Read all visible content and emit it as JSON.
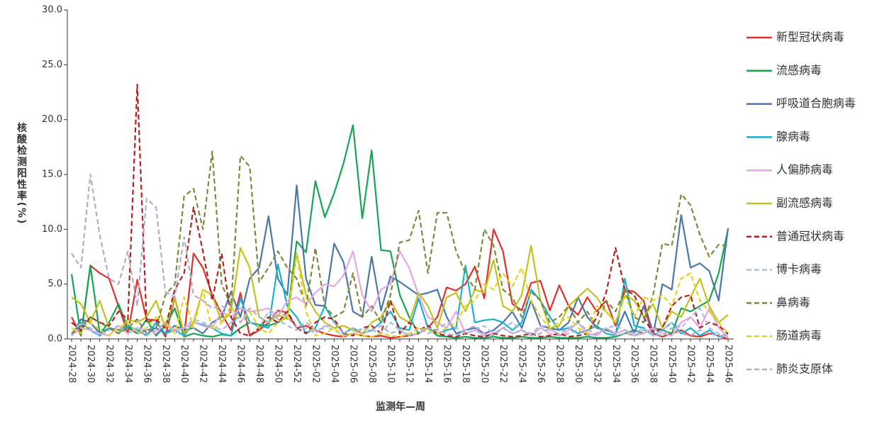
{
  "chart_data": {
    "type": "line",
    "y_label": "核酸检测阳性率(%)",
    "x_label": "监测年—周",
    "categories": [
      "2024-28",
      null,
      "2024-30",
      null,
      "2024-32",
      null,
      "2024-34",
      null,
      "2024-36",
      null,
      "2024-38",
      null,
      "2024-40",
      null,
      "2024-42",
      null,
      "2024-44",
      null,
      "2024-46",
      null,
      "2024-48",
      null,
      "2024-50",
      null,
      "2024-52",
      null,
      "2025-02",
      null,
      "2025-04",
      null,
      "2025-06",
      null,
      "2025-08",
      null,
      "2025-10",
      null,
      "2025-12",
      null,
      "2025-14",
      null,
      "2025-16",
      null,
      "2025-18",
      null,
      "2025-20",
      null,
      "2025-22",
      null,
      "2025-24",
      null,
      "2025-26",
      null,
      "2025-28",
      null,
      "2025-30",
      null,
      "2025-32",
      null,
      "2025-34",
      null,
      "2025-36",
      null,
      "2025-38",
      null,
      "2025-40",
      null,
      "2025-42",
      null,
      "2025-44",
      null,
      "2025-46"
    ],
    "ylim": [
      0,
      30
    ],
    "yticks": [
      {
        "value": 0,
        "label": "0.0"
      },
      {
        "value": 5,
        "label": "5.0"
      },
      {
        "value": 10,
        "label": "10.0"
      },
      {
        "value": 15,
        "label": "15.0"
      },
      {
        "value": 20,
        "label": "20.0"
      },
      {
        "value": 25,
        "label": "25.0"
      },
      {
        "value": 30,
        "label": "30.0"
      }
    ],
    "grid": false,
    "legend": "right",
    "series": [
      {
        "name": "新型冠状病毒",
        "color": "#e0302a",
        "line_style": "solid",
        "values": [
          2.0,
          0.3,
          6.7,
          6.0,
          5.5,
          3.0,
          0.5,
          5.4,
          1.8,
          1.7,
          0.2,
          3.8,
          0.3,
          7.8,
          6.5,
          4.0,
          2.3,
          0.8,
          4.2,
          0.3,
          0.8,
          1.5,
          2.6,
          2.4,
          1.0,
          1.2,
          0.8,
          0.5,
          0.3,
          0.2,
          0.5,
          0.3,
          0.2,
          0.3,
          0.1,
          0.2,
          0.3,
          0.5,
          1.0,
          2.0,
          4.7,
          4.4,
          5.0,
          6.6,
          3.7,
          10.0,
          8.0,
          3.2,
          2.6,
          5.1,
          5.3,
          2.6,
          4.9,
          3.0,
          2.2,
          3.8,
          2.5,
          3.5,
          1.2,
          4.5,
          4.3,
          3.5,
          0.5,
          0.2,
          0.5,
          0.8,
          0.3,
          0.2,
          0.5,
          0.3,
          0.0
        ]
      },
      {
        "name": "流感病毒",
        "color": "#1aa352",
        "line_style": "solid",
        "values": [
          5.9,
          0.3,
          6.7,
          0.5,
          1.5,
          3.2,
          1.0,
          0.5,
          1.8,
          0.3,
          1.2,
          2.8,
          0.2,
          0.5,
          0.3,
          0.2,
          0.4,
          0.3,
          1.0,
          1.5,
          1.3,
          1.2,
          1.5,
          2.0,
          8.9,
          7.9,
          14.4,
          11.1,
          13.3,
          16.0,
          19.5,
          11.0,
          17.2,
          8.1,
          8.0,
          4.0,
          2.0,
          0.5,
          1.0,
          0.3,
          0.2,
          0.1,
          0.2,
          0.1,
          0.1,
          0.2,
          0.1,
          0.1,
          0.2,
          0.1,
          0.1,
          0.2,
          0.1,
          0.1,
          0.1,
          0.2,
          0.1,
          0.1,
          0.2,
          0.5,
          0.8,
          0.5,
          1.0,
          0.8,
          0.5,
          2.8,
          2.5,
          3.0,
          3.5,
          6.0,
          10.0
        ]
      },
      {
        "name": "呼吸道合胞病毒",
        "color": "#4a76ae",
        "line_style": "solid",
        "values": [
          0.3,
          1.8,
          1.5,
          0.5,
          1.0,
          0.8,
          1.2,
          0.5,
          0.8,
          1.0,
          0.5,
          1.2,
          0.8,
          1.0,
          0.5,
          1.5,
          2.0,
          4.3,
          2.0,
          5.5,
          6.5,
          11.2,
          5.5,
          4.0,
          14.0,
          5.5,
          3.1,
          3.0,
          8.7,
          7.0,
          2.5,
          2.0,
          7.5,
          2.6,
          5.7,
          5.2,
          4.6,
          4.0,
          4.2,
          4.5,
          2.0,
          0.5,
          0.8,
          1.0,
          0.5,
          0.8,
          1.5,
          2.5,
          1.0,
          3.5,
          1.2,
          1.0,
          0.8,
          1.5,
          3.8,
          2.0,
          1.0,
          0.8,
          0.5,
          2.5,
          0.5,
          3.0,
          0.3,
          5.0,
          4.5,
          11.3,
          6.5,
          6.9,
          6.2,
          3.5,
          10.1
        ]
      },
      {
        "name": "腺病毒",
        "color": "#18b1d0",
        "line_style": "solid",
        "values": [
          0.5,
          1.5,
          0.8,
          0.3,
          1.0,
          0.5,
          1.2,
          0.8,
          0.3,
          1.5,
          0.5,
          0.8,
          0.3,
          1.5,
          1.3,
          1.0,
          0.5,
          0.3,
          3.7,
          1.5,
          1.2,
          1.0,
          6.8,
          3.0,
          2.0,
          0.5,
          1.0,
          3.0,
          1.5,
          0.5,
          1.0,
          0.5,
          0.8,
          1.5,
          2.5,
          1.0,
          0.8,
          3.7,
          1.0,
          0.5,
          0.8,
          1.0,
          6.7,
          1.5,
          1.7,
          1.8,
          1.5,
          0.8,
          1.5,
          4.5,
          3.5,
          2.0,
          0.8,
          1.0,
          0.5,
          0.8,
          1.2,
          0.5,
          0.3,
          5.5,
          1.2,
          1.0,
          0.3,
          0.8,
          1.5,
          0.5,
          1.0,
          0.3,
          0.8,
          0.2,
          0.5
        ]
      },
      {
        "name": "人偏肺病毒",
        "color": "#e6a6e2",
        "line_style": "solid",
        "values": [
          0.3,
          1.0,
          0.8,
          0.5,
          0.3,
          1.2,
          0.5,
          1.0,
          0.8,
          0.5,
          1.5,
          0.8,
          1.0,
          1.5,
          1.2,
          1.0,
          2.5,
          2.0,
          2.8,
          2.5,
          2.6,
          2.8,
          2.0,
          3.5,
          3.8,
          3.2,
          4.2,
          5.0,
          4.8,
          5.8,
          8.0,
          4.0,
          2.5,
          4.5,
          5.0,
          8.0,
          6.5,
          4.0,
          2.0,
          1.5,
          1.0,
          2.5,
          0.5,
          0.8,
          0.3,
          0.5,
          1.0,
          0.5,
          0.8,
          0.3,
          1.0,
          0.5,
          0.3,
          0.8,
          1.5,
          0.5,
          0.3,
          1.0,
          0.5,
          0.8,
          0.3,
          0.5,
          1.0,
          0.5,
          0.3,
          1.5,
          2.0,
          1.0,
          2.8,
          1.0,
          0.2
        ]
      },
      {
        "name": "副流感病毒",
        "color": "#c2c21e",
        "line_style": "solid",
        "values": [
          3.8,
          3.2,
          1.5,
          3.5,
          1.0,
          0.5,
          1.8,
          1.5,
          2.0,
          3.5,
          1.0,
          3.8,
          0.5,
          1.5,
          4.5,
          4.0,
          1.5,
          2.5,
          8.3,
          6.5,
          2.0,
          1.5,
          2.2,
          1.8,
          7.8,
          4.0,
          2.5,
          1.5,
          1.0,
          1.2,
          0.8,
          0.5,
          1.5,
          2.0,
          3.5,
          2.0,
          1.5,
          4.2,
          3.0,
          1.0,
          3.8,
          4.2,
          2.5,
          4.5,
          4.2,
          7.2,
          3.0,
          2.5,
          4.0,
          8.5,
          3.5,
          1.0,
          1.2,
          3.0,
          3.8,
          4.6,
          3.8,
          2.5,
          1.5,
          4.0,
          3.5,
          2.0,
          3.2,
          1.0,
          2.5,
          2.0,
          3.8,
          5.5,
          3.0,
          1.5,
          2.2
        ]
      },
      {
        "name": "普通冠状病毒",
        "color": "#b3201e",
        "line_style": "dashed",
        "values": [
          1.5,
          0.8,
          2.0,
          1.5,
          1.2,
          2.5,
          1.8,
          23.2,
          1.5,
          1.8,
          1.0,
          4.5,
          6.0,
          12.0,
          8.0,
          3.5,
          7.8,
          2.0,
          0.5,
          0.3,
          1.0,
          2.0,
          1.5,
          2.5,
          1.0,
          0.5,
          1.5,
          2.0,
          1.8,
          0.5,
          0.3,
          1.0,
          1.2,
          0.5,
          3.5,
          0.5,
          1.5,
          0.8,
          1.2,
          0.5,
          0.3,
          0.2,
          0.5,
          0.3,
          0.2,
          0.5,
          0.3,
          0.2,
          0.3,
          0.5,
          0.2,
          0.3,
          0.5,
          0.2,
          0.3,
          0.5,
          2.0,
          4.2,
          8.3,
          4.5,
          4.0,
          2.0,
          0.5,
          1.0,
          3.0,
          3.8,
          4.0,
          1.0,
          1.5,
          1.2,
          0.5
        ]
      },
      {
        "name": "博卡病毒",
        "color": "#a9bde3",
        "line_style": "dashed",
        "values": [
          0.5,
          1.5,
          1.0,
          0.3,
          0.8,
          1.2,
          0.5,
          1.0,
          0.3,
          0.8,
          1.5,
          0.5,
          1.0,
          1.8,
          1.5,
          1.2,
          0.8,
          1.5,
          2.0,
          1.5,
          1.0,
          2.5,
          1.8,
          1.2,
          0.8,
          1.0,
          0.5,
          1.2,
          0.8,
          0.3,
          0.5,
          1.0,
          0.8,
          0.5,
          1.5,
          0.8,
          0.3,
          1.0,
          0.5,
          0.8,
          1.5,
          1.0,
          0.5,
          0.8,
          1.2,
          0.5,
          1.0,
          1.5,
          0.8,
          0.5,
          1.2,
          0.8,
          0.5,
          1.0,
          1.5,
          0.8,
          0.5,
          1.0,
          1.2,
          0.8,
          0.5,
          1.0,
          0.3,
          0.8,
          1.5,
          1.0,
          2.0,
          2.8,
          1.0,
          0.5,
          0.2
        ]
      },
      {
        "name": "鼻病毒",
        "color": "#7b8a3a",
        "line_style": "dashed",
        "values": [
          0.5,
          1.2,
          2.0,
          1.5,
          1.0,
          0.5,
          1.0,
          1.8,
          0.5,
          1.0,
          4.0,
          5.0,
          13.0,
          13.7,
          10.0,
          17.1,
          5.0,
          3.0,
          16.7,
          15.7,
          5.2,
          6.5,
          8.0,
          6.5,
          5.5,
          3.0,
          8.3,
          3.0,
          2.0,
          2.5,
          6.0,
          2.0,
          3.0,
          1.5,
          4.0,
          8.8,
          9.0,
          11.7,
          6.0,
          11.5,
          11.5,
          8.0,
          6.0,
          4.5,
          10.0,
          8.5,
          4.5,
          3.8,
          2.0,
          4.3,
          3.5,
          1.5,
          2.0,
          3.0,
          1.5,
          2.5,
          1.0,
          3.5,
          2.5,
          4.5,
          2.0,
          1.5,
          4.0,
          8.7,
          8.5,
          13.2,
          12.2,
          9.5,
          7.5,
          8.6,
          8.5
        ]
      },
      {
        "name": "肠道病毒",
        "color": "#e3d21e",
        "line_style": "dashed",
        "values": [
          1.0,
          0.5,
          1.5,
          0.8,
          0.3,
          1.0,
          1.5,
          0.5,
          1.0,
          2.0,
          1.5,
          0.5,
          3.8,
          1.0,
          4.5,
          0.8,
          1.5,
          3.0,
          1.5,
          2.5,
          1.0,
          0.5,
          1.5,
          2.0,
          7.8,
          2.5,
          0.3,
          0.5,
          1.0,
          0.2,
          0.5,
          0.3,
          0.2,
          0.5,
          0.3,
          0.2,
          0.5,
          1.0,
          0.8,
          0.5,
          1.0,
          1.5,
          3.0,
          3.5,
          5.0,
          4.5,
          6.0,
          4.8,
          6.5,
          3.5,
          2.0,
          1.0,
          1.5,
          2.0,
          1.0,
          0.5,
          3.0,
          2.5,
          1.5,
          4.0,
          2.0,
          3.8,
          3.5,
          4.0,
          3.0,
          5.5,
          6.0,
          3.5,
          2.5,
          1.5,
          0.5
        ]
      },
      {
        "name": "肺炎支原体",
        "color": "#b3abc9",
        "line_style": "dashed",
        "values": [
          7.8,
          6.5,
          15.0,
          9.5,
          5.5,
          5.0,
          8.0,
          3.0,
          12.8,
          12.0,
          4.3,
          3.8,
          9.3,
          4.0,
          3.5,
          2.8,
          3.0,
          2.5,
          1.5,
          2.8,
          2.0,
          1.5,
          2.5,
          2.0,
          1.0,
          1.5,
          0.8,
          1.0,
          1.5,
          0.5,
          1.0,
          0.5,
          0.8,
          1.2,
          0.5,
          0.8,
          0.3,
          0.5,
          1.0,
          0.8,
          0.5,
          0.3,
          0.8,
          1.2,
          0.5,
          0.3,
          1.0,
          0.5,
          0.8,
          0.3,
          0.5,
          1.0,
          0.3,
          0.5,
          0.8,
          0.3,
          0.5,
          1.0,
          0.3,
          0.5,
          0.3,
          0.8,
          0.5,
          0.3,
          1.0,
          0.5,
          0.3,
          0.8,
          0.5,
          0.3,
          0.2
        ]
      }
    ]
  }
}
